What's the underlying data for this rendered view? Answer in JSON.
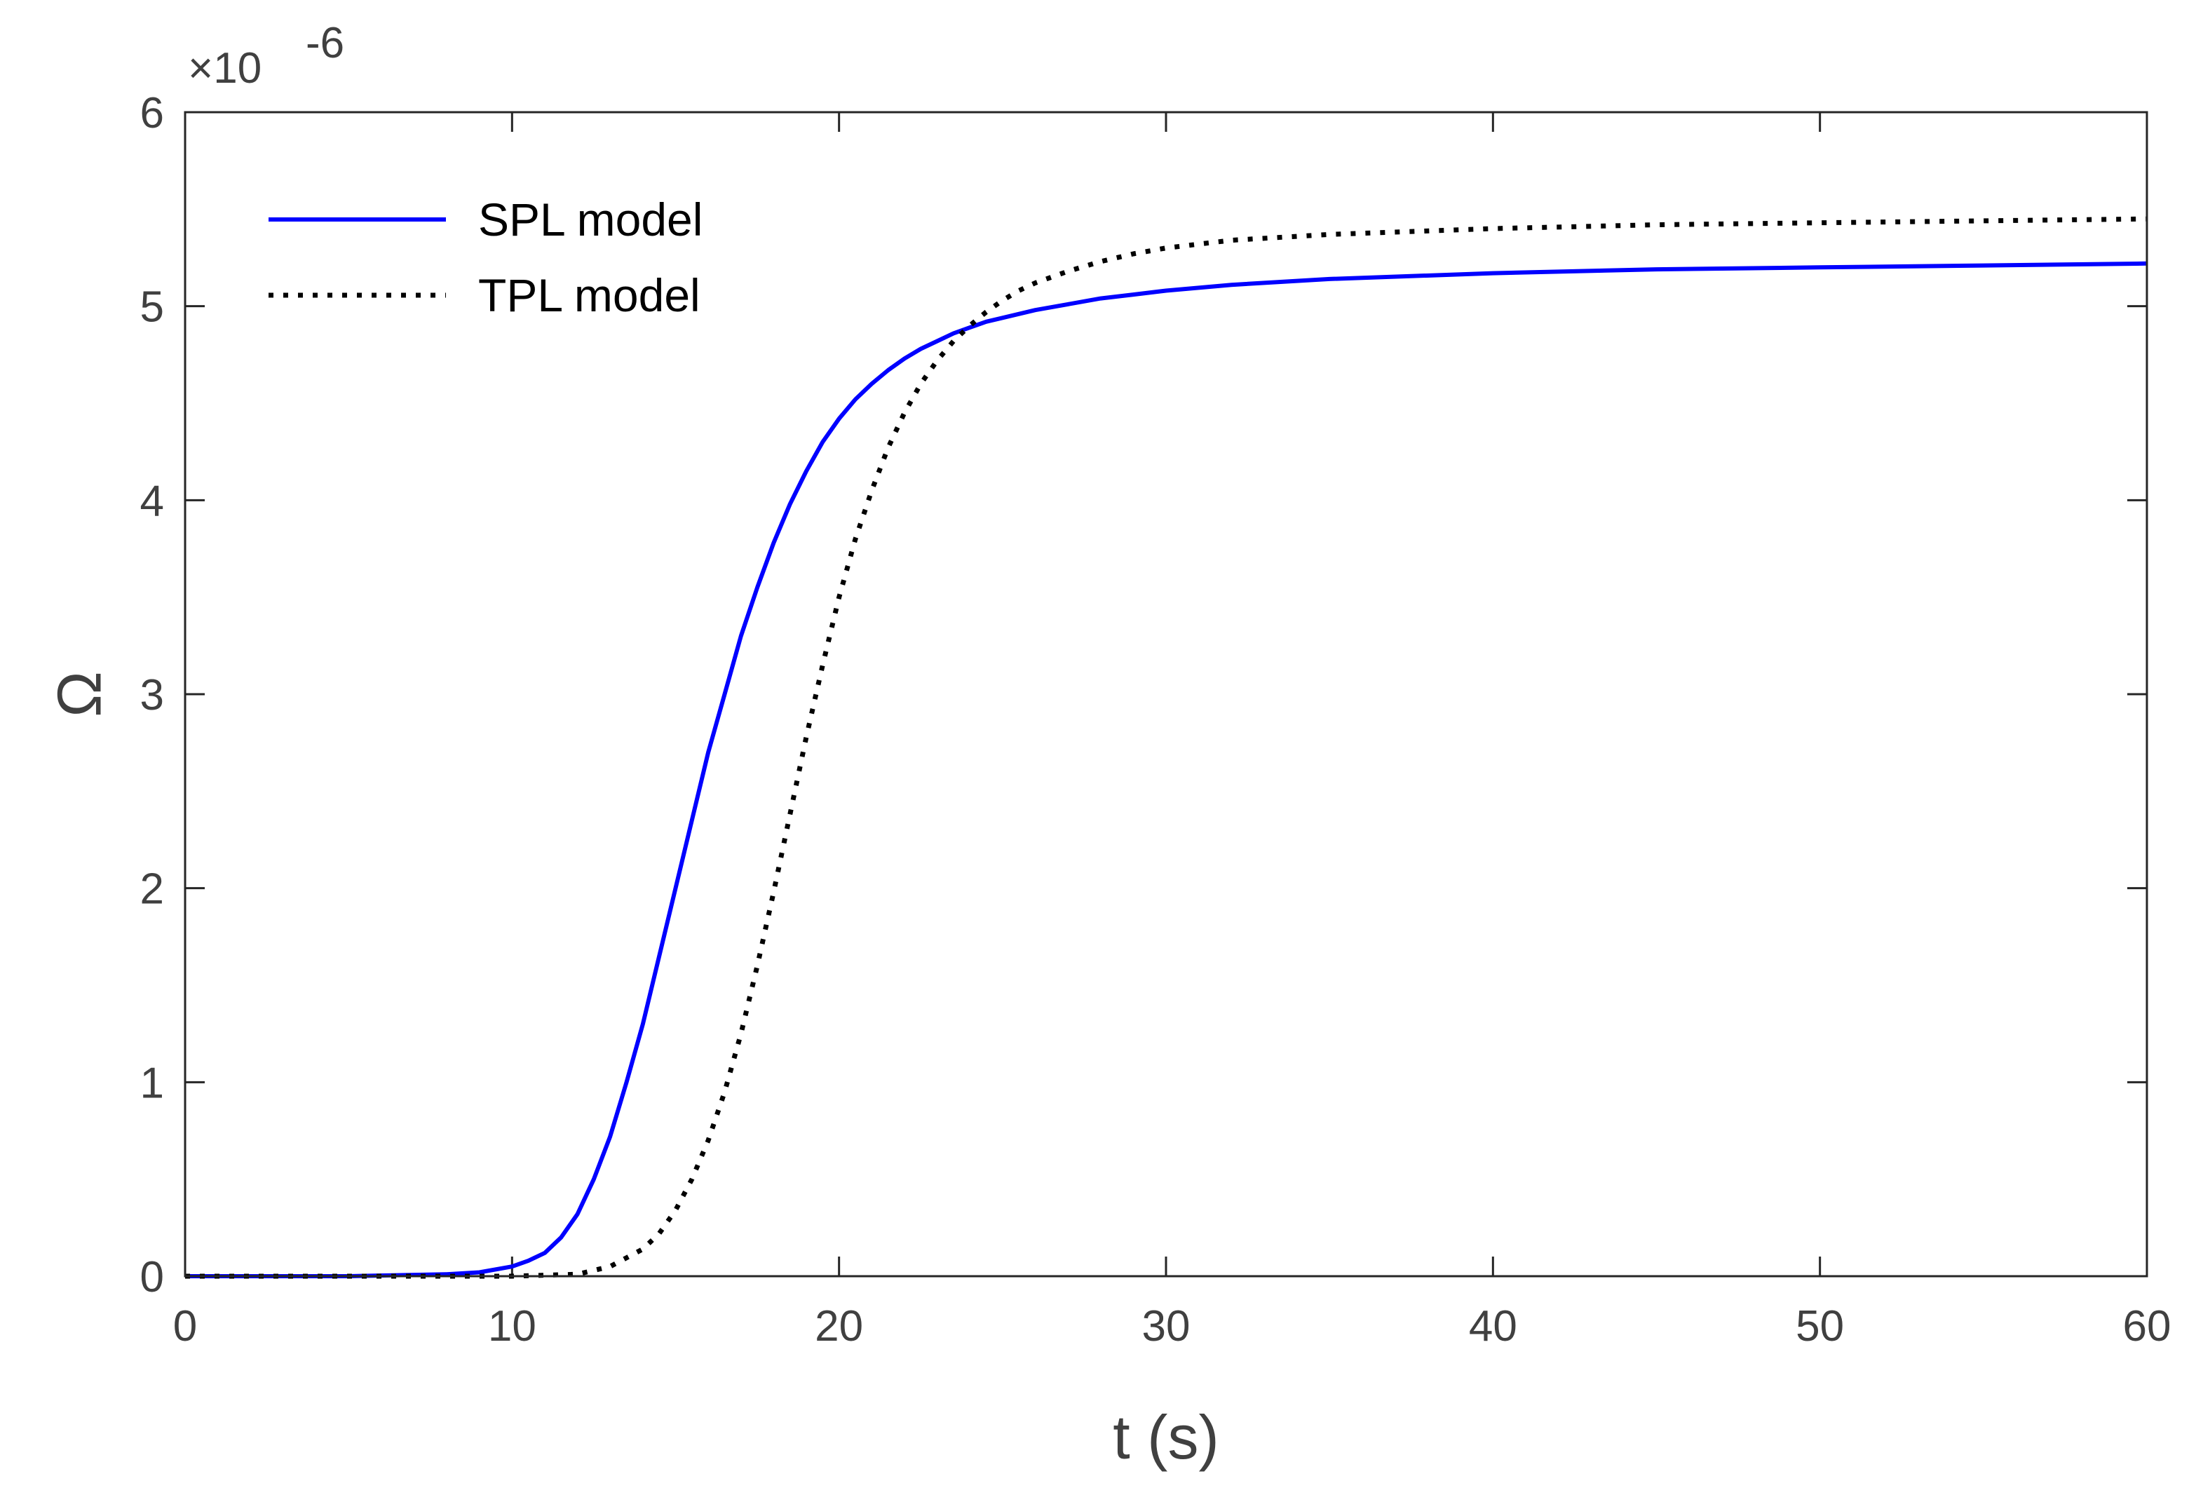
{
  "chart_data": {
    "type": "line",
    "title": "",
    "xlabel": "t (s)",
    "ylabel": "Ω",
    "xlim": [
      0,
      60
    ],
    "ylim": [
      0,
      6
    ],
    "x_ticks": [
      0,
      10,
      20,
      30,
      40,
      50,
      60
    ],
    "x_tick_labels": [
      "0",
      "10",
      "20",
      "30",
      "40",
      "50",
      "60"
    ],
    "y_ticks": [
      0,
      1,
      2,
      3,
      4,
      5,
      6
    ],
    "y_tick_labels": [
      "0",
      "1",
      "2",
      "3",
      "4",
      "5",
      "6"
    ],
    "y_exponent": {
      "base": "×10",
      "power": "-6"
    },
    "grid": false,
    "legend_position": "top-left",
    "series": [
      {
        "name": "SPL model",
        "color": "#0000ff",
        "style": "solid",
        "x": [
          0,
          5,
          8,
          9,
          10,
          10.5,
          11,
          11.5,
          12,
          12.5,
          13,
          13.5,
          14,
          14.5,
          15,
          15.5,
          16,
          16.5,
          17,
          17.5,
          18,
          18.5,
          19,
          19.5,
          20,
          20.5,
          21,
          21.5,
          22,
          22.5,
          23,
          23.5,
          24,
          24.5,
          25,
          26,
          27,
          28,
          29,
          30,
          32,
          35,
          40,
          45,
          50,
          55,
          60
        ],
        "values": [
          0,
          0,
          0.01,
          0.02,
          0.05,
          0.08,
          0.12,
          0.2,
          0.32,
          0.5,
          0.72,
          1.0,
          1.3,
          1.65,
          2.0,
          2.35,
          2.7,
          3.0,
          3.3,
          3.55,
          3.78,
          3.98,
          4.15,
          4.3,
          4.42,
          4.52,
          4.6,
          4.67,
          4.73,
          4.78,
          4.82,
          4.86,
          4.89,
          4.92,
          4.94,
          4.98,
          5.01,
          5.04,
          5.06,
          5.08,
          5.11,
          5.14,
          5.17,
          5.19,
          5.2,
          5.21,
          5.22
        ]
      },
      {
        "name": "TPL model",
        "color": "#000000",
        "style": "dotted",
        "x": [
          0,
          5,
          10,
          12,
          13,
          14,
          14.5,
          15,
          15.5,
          16,
          16.5,
          17,
          17.5,
          18,
          18.5,
          19,
          19.5,
          20,
          20.5,
          21,
          21.5,
          22,
          22.5,
          23,
          23.5,
          24,
          24.5,
          25,
          25.5,
          26,
          27,
          28,
          29,
          30,
          32,
          35,
          40,
          45,
          50,
          55,
          60
        ],
        "values": [
          0,
          0,
          0,
          0.01,
          0.05,
          0.14,
          0.22,
          0.34,
          0.5,
          0.7,
          0.95,
          1.25,
          1.6,
          1.98,
          2.38,
          2.78,
          3.15,
          3.5,
          3.8,
          4.05,
          4.27,
          4.45,
          4.6,
          4.72,
          4.82,
          4.9,
          4.97,
          5.03,
          5.08,
          5.12,
          5.18,
          5.23,
          5.27,
          5.3,
          5.34,
          5.37,
          5.4,
          5.42,
          5.43,
          5.44,
          5.45
        ]
      }
    ]
  }
}
